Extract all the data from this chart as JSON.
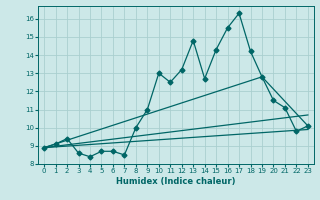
{
  "title": "",
  "xlabel": "Humidex (Indice chaleur)",
  "background_color": "#cce8e8",
  "grid_color": "#aacfcf",
  "line_color": "#006666",
  "xlim": [
    -0.5,
    23.5
  ],
  "ylim": [
    8.0,
    16.7
  ],
  "xticks": [
    0,
    1,
    2,
    3,
    4,
    5,
    6,
    7,
    8,
    9,
    10,
    11,
    12,
    13,
    14,
    15,
    16,
    17,
    18,
    19,
    20,
    21,
    22,
    23
  ],
  "yticks": [
    8,
    9,
    10,
    11,
    12,
    13,
    14,
    15,
    16
  ],
  "series1_x": [
    0,
    1,
    2,
    3,
    4,
    5,
    6,
    7,
    8,
    9,
    10,
    11,
    12,
    13,
    14,
    15,
    16,
    17,
    18,
    19,
    20,
    21,
    22,
    23
  ],
  "series1_y": [
    8.9,
    9.1,
    9.4,
    8.6,
    8.4,
    8.7,
    8.7,
    8.5,
    10.0,
    11.0,
    13.0,
    12.5,
    13.2,
    14.8,
    12.7,
    14.3,
    15.5,
    16.3,
    14.2,
    12.8,
    11.5,
    11.1,
    9.8,
    10.1
  ],
  "trend1_x": [
    0,
    23
  ],
  "trend1_y": [
    8.9,
    9.9
  ],
  "trend2_x": [
    0,
    23
  ],
  "trend2_y": [
    8.9,
    10.7
  ],
  "trend3_x": [
    0,
    19,
    23
  ],
  "trend3_y": [
    8.9,
    12.8,
    10.1
  ],
  "marker_size": 2.5,
  "linewidth": 0.9
}
